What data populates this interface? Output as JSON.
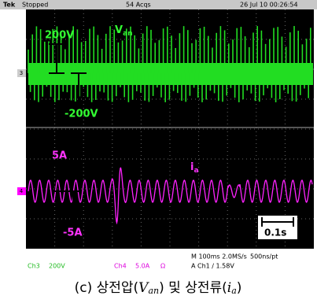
{
  "header": {
    "brand": "Tek",
    "status": "Stopped",
    "acquisitions": "54 Acqs",
    "timestamp": "26 Jul 10 00:26:54"
  },
  "markers": {
    "ch3": "3",
    "ch4": "4"
  },
  "annotations": {
    "voltage_pos": "200V",
    "voltage_neg": "-200V",
    "voltage_label": "V",
    "voltage_sub": "an",
    "current_pos": "5A",
    "current_neg": "-5A",
    "current_label": "i",
    "current_sub": "a",
    "time_scale": "0.1s"
  },
  "footer": {
    "ch3": "Ch3",
    "ch3_scale": "200V",
    "ch4": "Ch4",
    "ch4_scale": "5.0A",
    "ch4_impedance": "Ω",
    "timebase": "M 100ms 2.0MS/s",
    "resolution": "500ns/pt",
    "trigger": "A Ch1 ∕ 1.58V"
  },
  "caption": {
    "prefix": "(c) 상전압(",
    "v": "V",
    "v_sub": "an",
    "middle": ") 및 상전류(",
    "i": "i",
    "i_sub": "a",
    "suffix": ")"
  }
}
